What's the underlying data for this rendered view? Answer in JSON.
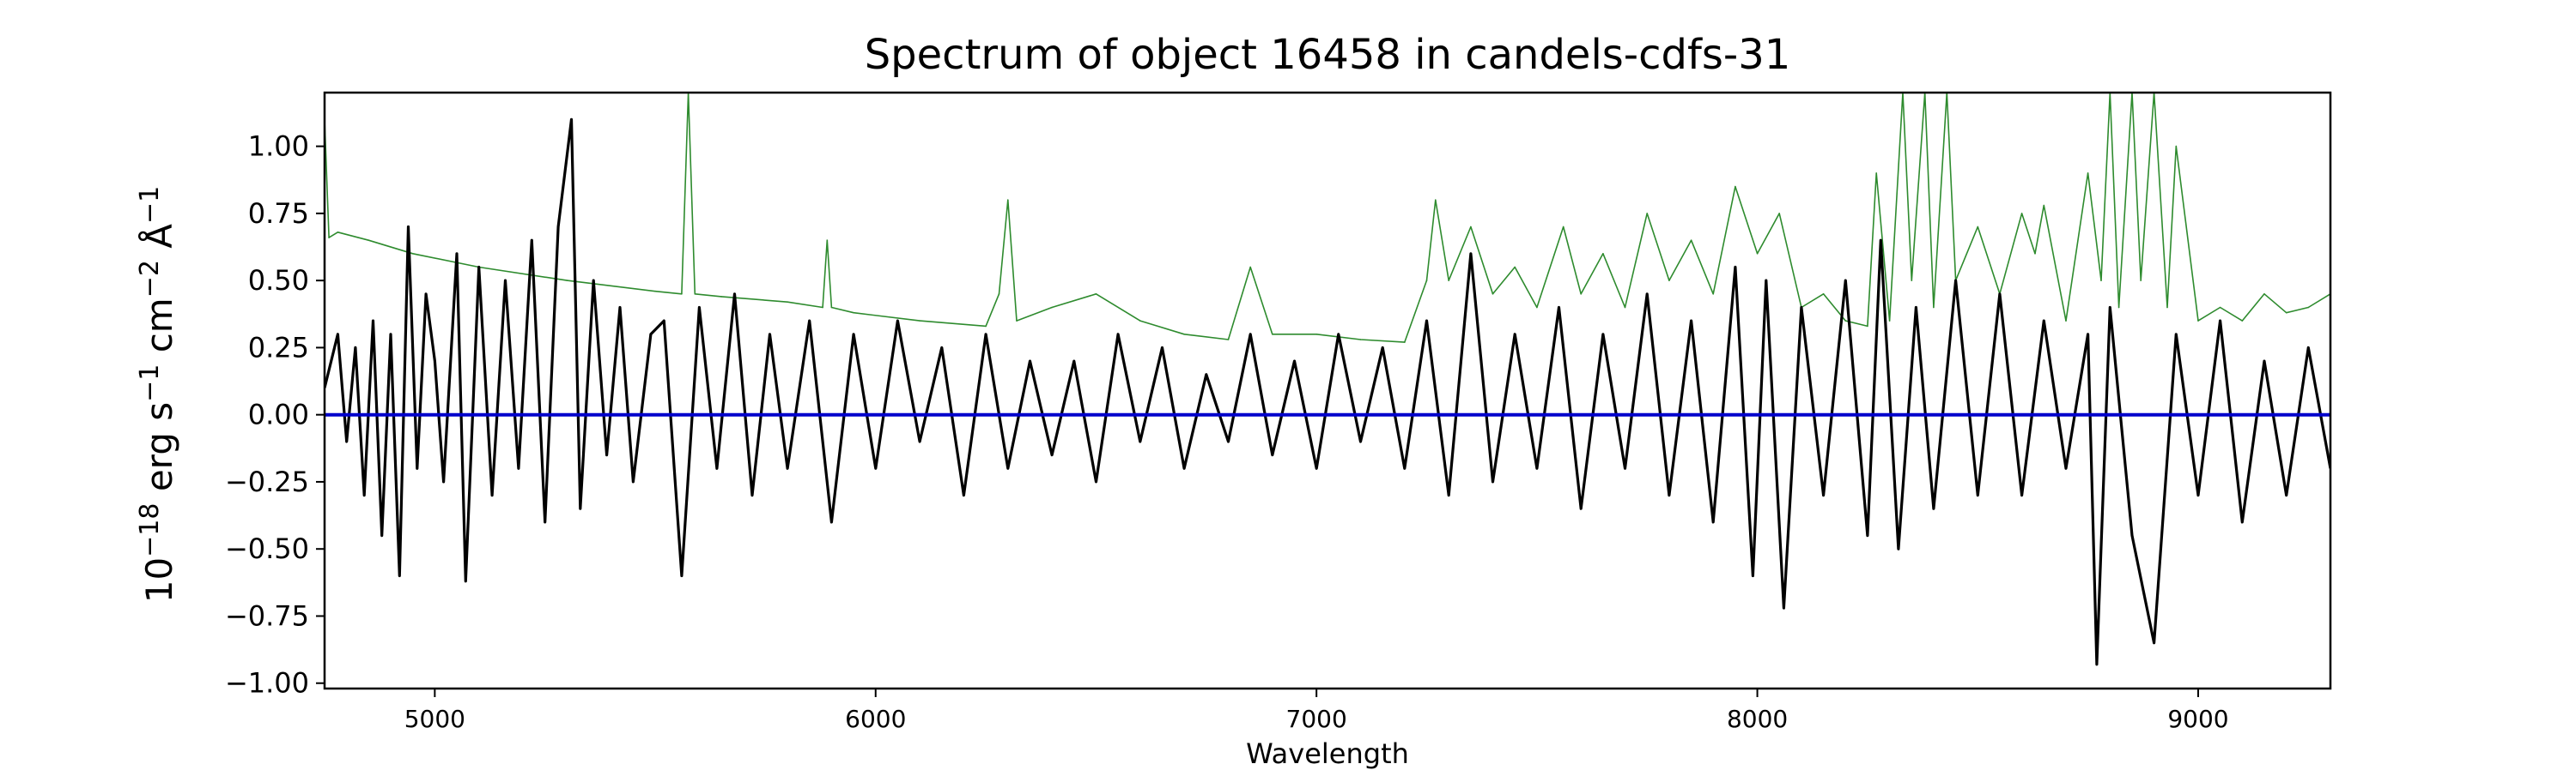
{
  "chart_data": {
    "type": "line",
    "title": "Spectrum of object 16458 in candels-cdfs-31",
    "xlabel": "Wavelength",
    "ylabel": {
      "base": "10",
      "exp1": "−18",
      "erg": "erg s",
      "exp2": "−1",
      "cm": "cm",
      "exp3": "−2",
      "ang": "Å",
      "exp4": "−1"
    },
    "xlim": [
      4750,
      9300
    ],
    "ylim": [
      -1.02,
      1.2
    ],
    "x_ticks": [
      5000,
      6000,
      7000,
      8000,
      9000
    ],
    "x_tick_labels": [
      "5000",
      "6000",
      "7000",
      "8000",
      "9000"
    ],
    "y_ticks": [
      1.0,
      0.75,
      0.5,
      0.25,
      0.0,
      -0.25,
      -0.5,
      -0.75,
      -1.0
    ],
    "y_tick_labels": [
      "1.00",
      "0.75",
      "0.50",
      "0.25",
      "0.00",
      "−0.25",
      "−0.50",
      "−0.75",
      "−1.00"
    ],
    "grid": false,
    "colors": {
      "flux": "#000000",
      "error": "#2e8b2e",
      "zero": "#0000cc"
    },
    "series": [
      {
        "role": "flux",
        "x": [
          4750,
          4780,
          4800,
          4820,
          4840,
          4860,
          4880,
          4900,
          4920,
          4940,
          4960,
          4980,
          5000,
          5020,
          5050,
          5070,
          5100,
          5130,
          5160,
          5190,
          5220,
          5250,
          5280,
          5310,
          5330,
          5360,
          5390,
          5420,
          5450,
          5490,
          5520,
          5560,
          5600,
          5640,
          5680,
          5720,
          5760,
          5800,
          5850,
          5900,
          5950,
          6000,
          6050,
          6100,
          6150,
          6200,
          6250,
          6300,
          6350,
          6400,
          6450,
          6500,
          6550,
          6600,
          6650,
          6700,
          6750,
          6800,
          6850,
          6900,
          6950,
          7000,
          7050,
          7100,
          7150,
          7200,
          7250,
          7300,
          7350,
          7400,
          7450,
          7500,
          7550,
          7600,
          7650,
          7700,
          7750,
          7800,
          7850,
          7900,
          7950,
          7990,
          8020,
          8060,
          8100,
          8150,
          8200,
          8250,
          8280,
          8320,
          8360,
          8400,
          8450,
          8500,
          8550,
          8600,
          8650,
          8700,
          8750,
          8770,
          8800,
          8850,
          8900,
          8950,
          9000,
          9050,
          9100,
          9150,
          9200,
          9250,
          9300
        ],
        "y": [
          0.1,
          0.3,
          -0.1,
          0.25,
          -0.3,
          0.35,
          -0.45,
          0.3,
          -0.6,
          0.7,
          -0.2,
          0.45,
          0.2,
          -0.25,
          0.6,
          -0.62,
          0.55,
          -0.3,
          0.5,
          -0.2,
          0.65,
          -0.4,
          0.7,
          1.1,
          -0.35,
          0.5,
          -0.15,
          0.4,
          -0.25,
          0.3,
          0.35,
          -0.6,
          0.4,
          -0.2,
          0.45,
          -0.3,
          0.3,
          -0.2,
          0.35,
          -0.4,
          0.3,
          -0.2,
          0.35,
          -0.1,
          0.25,
          -0.3,
          0.3,
          -0.2,
          0.2,
          -0.15,
          0.2,
          -0.25,
          0.3,
          -0.1,
          0.25,
          -0.2,
          0.15,
          -0.1,
          0.3,
          -0.15,
          0.2,
          -0.2,
          0.3,
          -0.1,
          0.25,
          -0.2,
          0.35,
          -0.3,
          0.6,
          -0.25,
          0.3,
          -0.2,
          0.4,
          -0.35,
          0.3,
          -0.2,
          0.45,
          -0.3,
          0.35,
          -0.4,
          0.55,
          -0.6,
          0.5,
          -0.72,
          0.4,
          -0.3,
          0.5,
          -0.45,
          0.65,
          -0.5,
          0.4,
          -0.35,
          0.5,
          -0.3,
          0.45,
          -0.3,
          0.35,
          -0.2,
          0.3,
          -0.93,
          0.4,
          -0.45,
          -0.85,
          0.3,
          -0.3,
          0.35,
          -0.4,
          0.2,
          -0.3,
          0.25,
          -0.2
        ]
      },
      {
        "role": "error",
        "x": [
          4750,
          4760,
          4780,
          4850,
          4950,
          5100,
          5300,
          5500,
          5560,
          5575,
          5590,
          5650,
          5800,
          5880,
          5890,
          5900,
          5950,
          6100,
          6250,
          6280,
          6300,
          6320,
          6400,
          6500,
          6600,
          6700,
          6800,
          6850,
          6900,
          7000,
          7100,
          7200,
          7250,
          7270,
          7300,
          7350,
          7400,
          7450,
          7500,
          7560,
          7600,
          7650,
          7700,
          7750,
          7800,
          7850,
          7900,
          7950,
          8000,
          8050,
          8100,
          8150,
          8200,
          8250,
          8270,
          8300,
          8330,
          8350,
          8380,
          8400,
          8430,
          8450,
          8500,
          8550,
          8600,
          8630,
          8650,
          8700,
          8750,
          8780,
          8800,
          8820,
          8850,
          8870,
          8900,
          8930,
          8950,
          9000,
          9050,
          9100,
          9150,
          9200,
          9250,
          9300
        ],
        "y": [
          1.1,
          0.66,
          0.68,
          0.65,
          0.6,
          0.55,
          0.5,
          0.46,
          0.45,
          1.2,
          0.45,
          0.44,
          0.42,
          0.4,
          0.65,
          0.4,
          0.38,
          0.35,
          0.33,
          0.45,
          0.8,
          0.35,
          0.4,
          0.45,
          0.35,
          0.3,
          0.28,
          0.55,
          0.3,
          0.3,
          0.28,
          0.27,
          0.5,
          0.8,
          0.5,
          0.7,
          0.45,
          0.55,
          0.4,
          0.7,
          0.45,
          0.6,
          0.4,
          0.75,
          0.5,
          0.65,
          0.45,
          0.85,
          0.6,
          0.75,
          0.4,
          0.45,
          0.35,
          0.33,
          0.9,
          0.35,
          1.2,
          0.5,
          1.2,
          0.4,
          1.2,
          0.5,
          0.7,
          0.45,
          0.75,
          0.6,
          0.78,
          0.35,
          0.9,
          0.5,
          1.2,
          0.4,
          1.2,
          0.5,
          1.2,
          0.4,
          1.0,
          0.35,
          0.4,
          0.35,
          0.45,
          0.38,
          0.4,
          0.45
        ]
      },
      {
        "role": "zero",
        "x": [
          4750,
          9300
        ],
        "y": [
          0,
          0
        ]
      }
    ]
  }
}
